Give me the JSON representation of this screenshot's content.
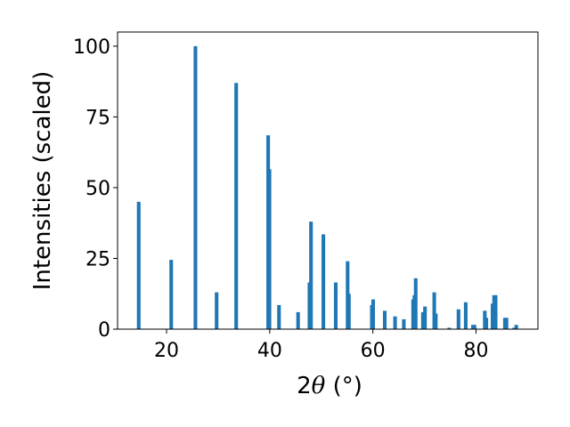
{
  "chart_data": {
    "type": "bar",
    "title": "",
    "xlabel_parts": {
      "prefix": "2",
      "theta": "θ",
      "suffix": " (°)"
    },
    "ylabel": "Intensities (scaled)",
    "xlim": [
      10.5,
      92.0
    ],
    "ylim": [
      0,
      105
    ],
    "xticks": [
      20,
      40,
      60,
      80
    ],
    "yticks": [
      0,
      25,
      50,
      75,
      100
    ],
    "grid": false,
    "bar_color": "#1f77b4",
    "bar_width": 0.7,
    "x": [
      14.6,
      20.9,
      25.6,
      29.7,
      33.5,
      39.7,
      39.95,
      41.8,
      45.5,
      47.7,
      48.0,
      50.4,
      52.8,
      55.1,
      55.35,
      59.8,
      60.05,
      62.3,
      64.3,
      66.0,
      67.8,
      68.05,
      68.3,
      69.7,
      70.1,
      71.9,
      72.2,
      74.8,
      76.6,
      78.0,
      79.4,
      79.7,
      81.7,
      82.0,
      83.2,
      83.5,
      83.8,
      85.6,
      85.9,
      87.4,
      87.8
    ],
    "values": [
      45,
      24.5,
      100,
      13,
      87,
      68.5,
      56.5,
      8.5,
      6,
      16.5,
      38,
      33.5,
      16.5,
      24,
      12.5,
      8.5,
      10.5,
      6.5,
      4.5,
      3.5,
      10.5,
      12,
      18,
      6,
      8,
      13,
      5.5,
      0.5,
      7,
      9.5,
      1.5,
      1.5,
      6.5,
      4,
      9,
      12,
      12,
      4,
      4,
      0.5,
      1.5
    ]
  }
}
